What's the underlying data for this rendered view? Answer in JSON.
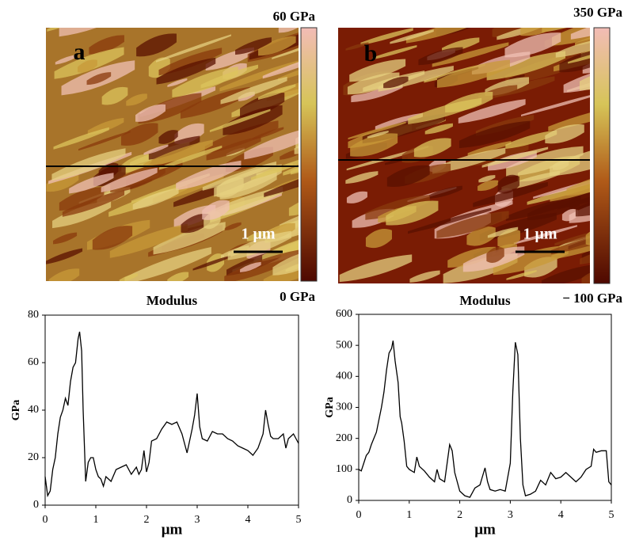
{
  "images": [
    {
      "label": "a",
      "scale_max": "60 GPa",
      "scale_min": "0 GPa",
      "scale_bar": "1 μm"
    },
    {
      "label": "b",
      "scale_max": "350 GPa",
      "scale_min": "− 100 GPa",
      "scale_bar": "1 μm"
    }
  ],
  "chart_data": [
    {
      "type": "line",
      "title": "Modulus",
      "y_label": "GPa",
      "x_label": "μm",
      "x": [
        0,
        0.05,
        0.1,
        0.15,
        0.2,
        0.25,
        0.3,
        0.35,
        0.4,
        0.45,
        0.5,
        0.55,
        0.6,
        0.65,
        0.68,
        0.72,
        0.75,
        0.8,
        0.85,
        0.9,
        0.95,
        1.0,
        1.05,
        1.1,
        1.15,
        1.2,
        1.3,
        1.4,
        1.5,
        1.6,
        1.7,
        1.8,
        1.85,
        1.9,
        1.95,
        2.0,
        2.05,
        2.1,
        2.2,
        2.3,
        2.4,
        2.5,
        2.6,
        2.7,
        2.8,
        2.9,
        2.95,
        3.0,
        3.05,
        3.1,
        3.2,
        3.3,
        3.4,
        3.5,
        3.6,
        3.7,
        3.8,
        3.9,
        4.0,
        4.1,
        4.2,
        4.3,
        4.35,
        4.4,
        4.45,
        4.5,
        4.6,
        4.7,
        4.75,
        4.8,
        4.9,
        4.95,
        5.0
      ],
      "series": [
        {
          "color": "#000000",
          "values": [
            12,
            4,
            6,
            15,
            20,
            30,
            37,
            40,
            45,
            42,
            52,
            58,
            60,
            70,
            73,
            65,
            40,
            10,
            18,
            20,
            20,
            15,
            12,
            11,
            8,
            12,
            10,
            15,
            16,
            17,
            13,
            16,
            13,
            15,
            23,
            14,
            18,
            27,
            28,
            32,
            35,
            34,
            35,
            30,
            22,
            32,
            38,
            47,
            33,
            28,
            27,
            31,
            30,
            30,
            28,
            27,
            25,
            24,
            23,
            21,
            24,
            30,
            40,
            34,
            29,
            28,
            28,
            30,
            24,
            28,
            30,
            28,
            26
          ]
        }
      ],
      "xlim": [
        0,
        5
      ],
      "ylim": [
        0,
        80
      ],
      "xticks": [
        0,
        1,
        2,
        3,
        4,
        5
      ],
      "yticks": [
        0,
        20,
        40,
        60,
        80
      ]
    },
    {
      "type": "line",
      "title": "Modulus",
      "y_label": "GPa",
      "x_label": "μm",
      "x": [
        0,
        0.05,
        0.1,
        0.15,
        0.2,
        0.25,
        0.3,
        0.35,
        0.4,
        0.45,
        0.5,
        0.55,
        0.6,
        0.65,
        0.68,
        0.72,
        0.78,
        0.82,
        0.85,
        0.9,
        0.95,
        1.0,
        1.1,
        1.15,
        1.2,
        1.3,
        1.4,
        1.5,
        1.55,
        1.6,
        1.7,
        1.75,
        1.8,
        1.85,
        1.9,
        2.0,
        2.1,
        2.2,
        2.3,
        2.4,
        2.5,
        2.55,
        2.6,
        2.7,
        2.8,
        2.9,
        3.0,
        3.05,
        3.1,
        3.15,
        3.2,
        3.25,
        3.3,
        3.4,
        3.5,
        3.6,
        3.7,
        3.8,
        3.9,
        4.0,
        4.1,
        4.2,
        4.3,
        4.4,
        4.5,
        4.6,
        4.65,
        4.7,
        4.8,
        4.9,
        4.95,
        5.0
      ],
      "series": [
        {
          "color": "#000000",
          "values": [
            100,
            95,
            120,
            145,
            155,
            180,
            200,
            220,
            260,
            300,
            350,
            420,
            475,
            490,
            515,
            450,
            380,
            270,
            250,
            190,
            110,
            100,
            90,
            140,
            110,
            95,
            75,
            60,
            100,
            70,
            60,
            120,
            180,
            160,
            90,
            30,
            15,
            10,
            40,
            50,
            105,
            60,
            35,
            30,
            35,
            30,
            120,
            350,
            510,
            470,
            200,
            50,
            15,
            20,
            30,
            65,
            50,
            90,
            70,
            75,
            90,
            75,
            60,
            75,
            100,
            110,
            165,
            155,
            160,
            160,
            60,
            50
          ]
        }
      ],
      "xlim": [
        0,
        5
      ],
      "ylim": [
        0,
        600
      ],
      "xticks": [
        0,
        1,
        2,
        3,
        4,
        5
      ],
      "yticks": [
        0,
        100,
        200,
        300,
        400,
        500,
        600
      ]
    }
  ]
}
